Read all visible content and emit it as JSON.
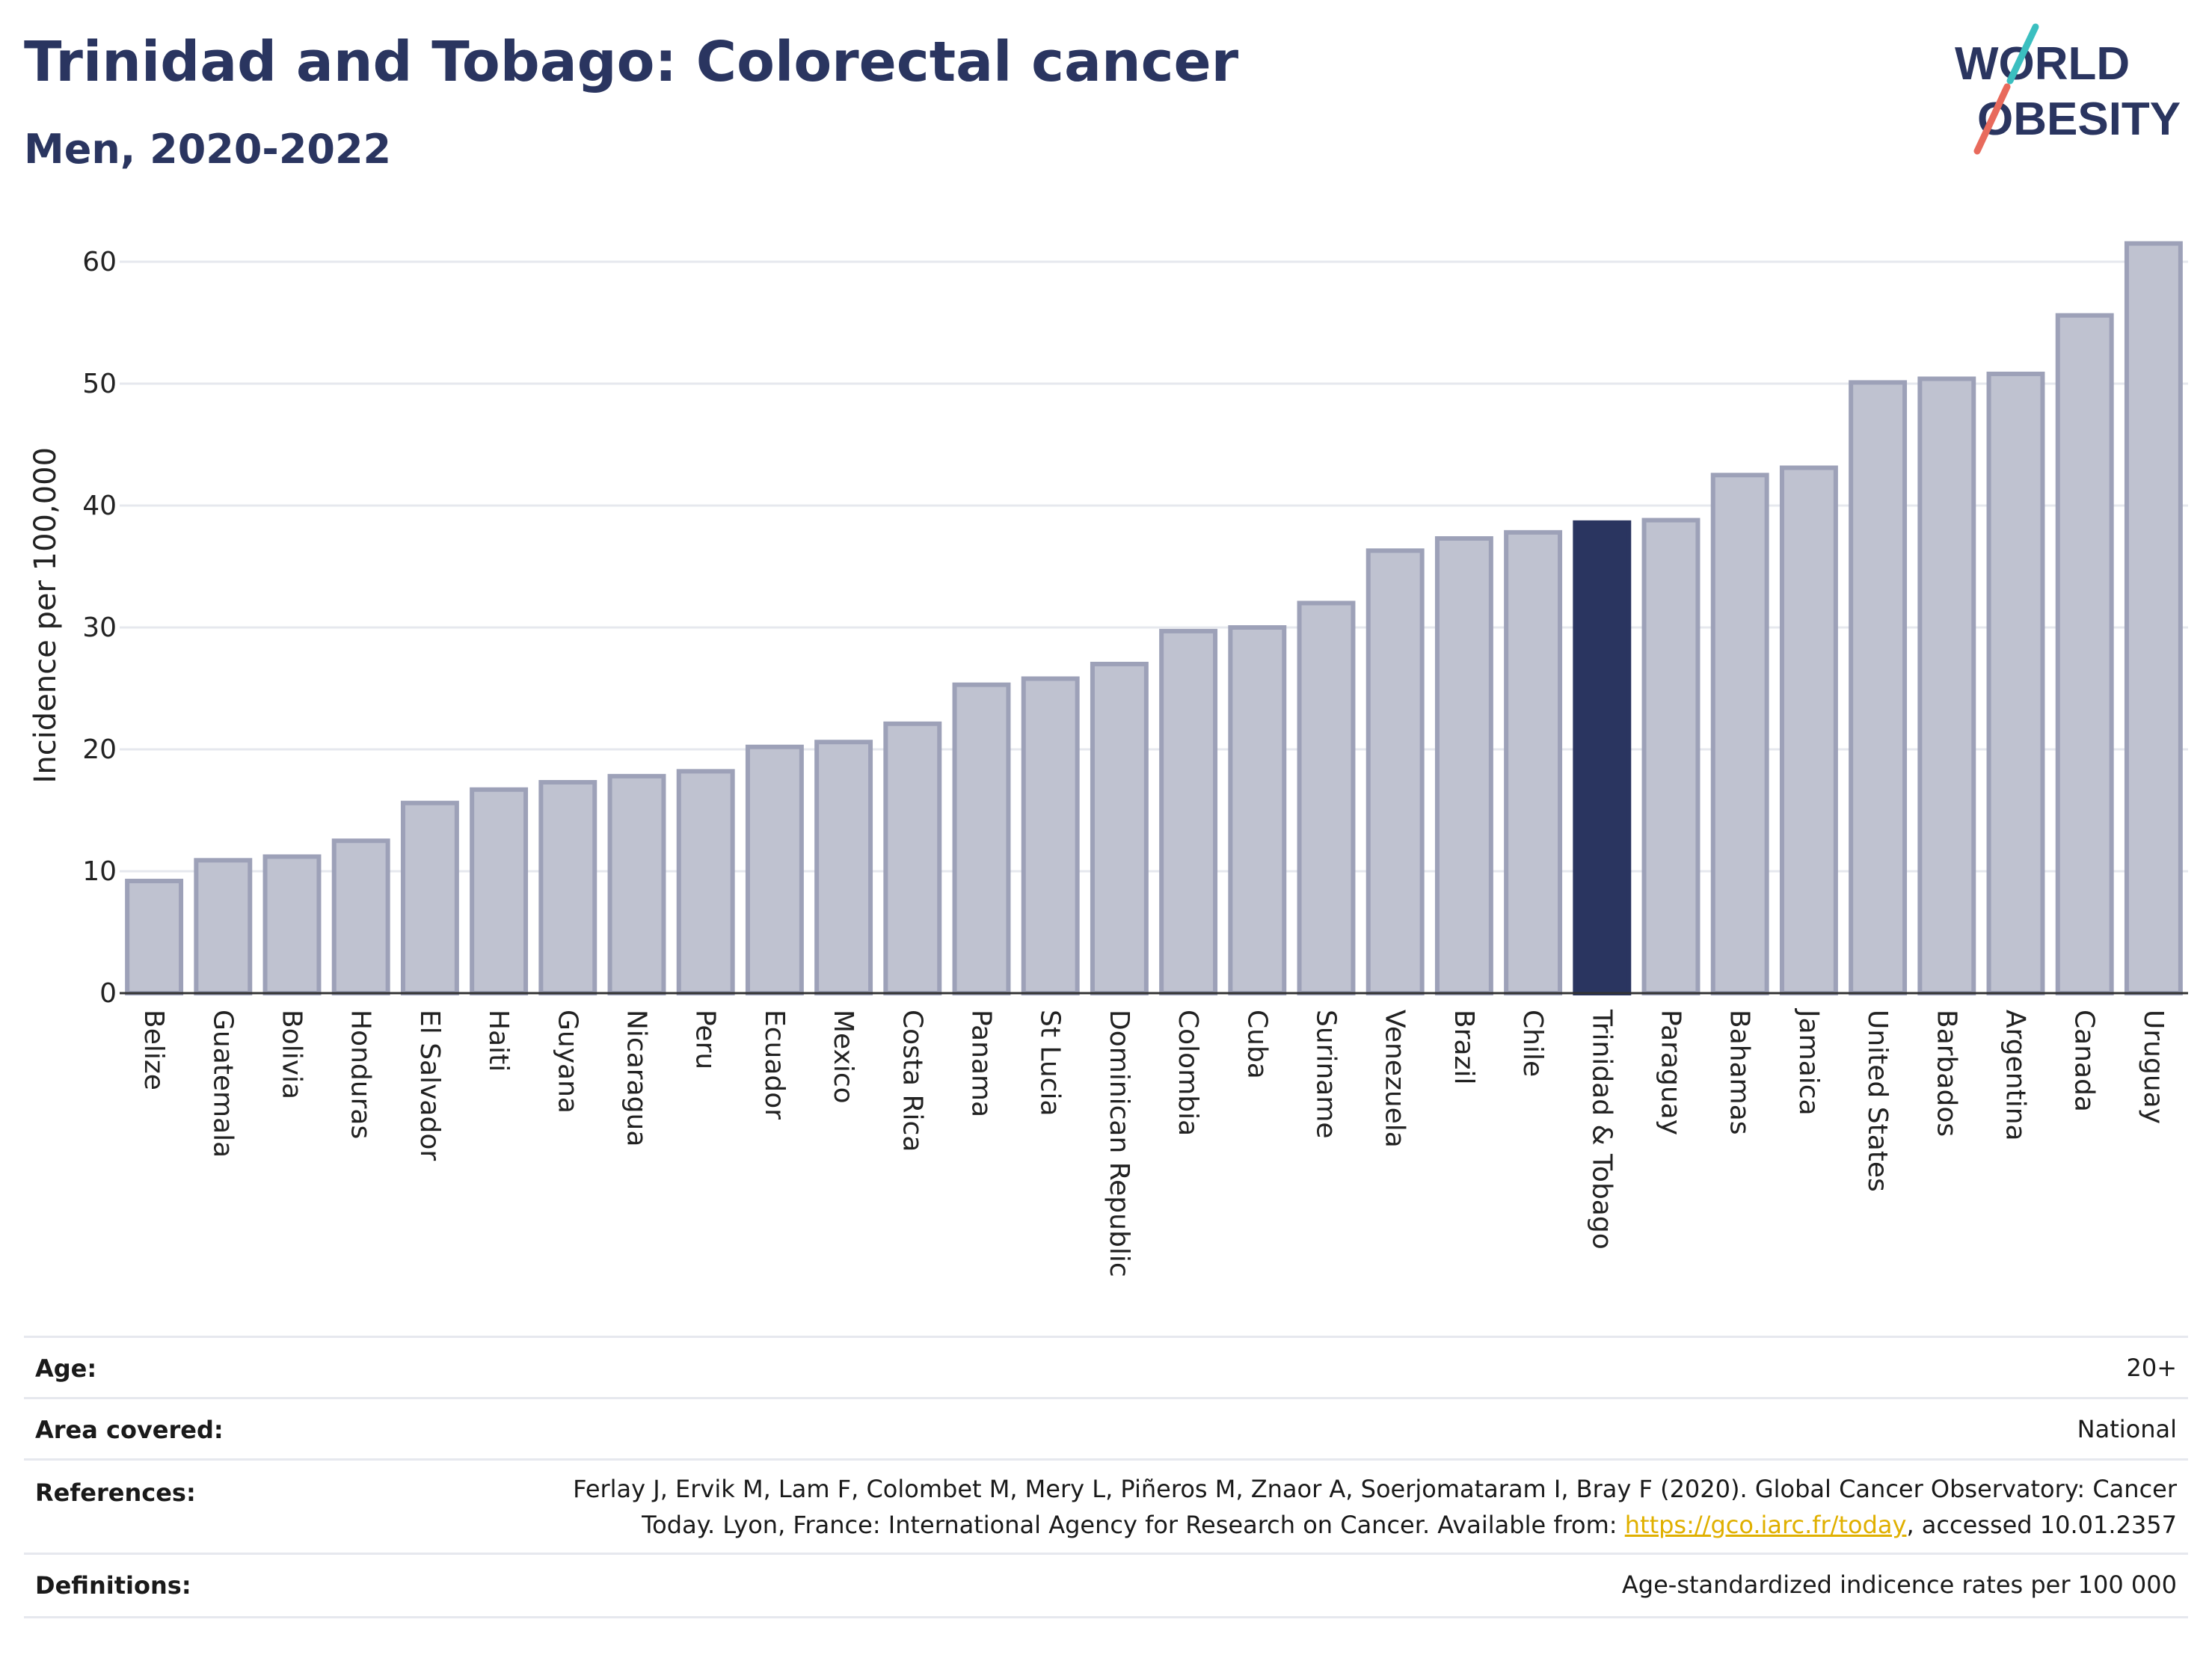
{
  "header": {
    "title": "Trinidad and Tobago: Colorectal cancer",
    "subtitle": "Men, 2020-2022"
  },
  "logo": {
    "line1": "WORLD",
    "line2": "OBESITY",
    "colors": {
      "text": "#2a3560",
      "slash_top": "#3bbfc0",
      "slash_bottom": "#e86a5c"
    }
  },
  "chart_data": {
    "type": "bar",
    "ylabel": "Incidence per 100,000",
    "xlabel": "",
    "ylim": [
      0,
      62
    ],
    "yticks": [
      0,
      10,
      20,
      30,
      40,
      50,
      60
    ],
    "grid": true,
    "highlight": "Trinidad & Tobago",
    "colors": {
      "bar": "#bfc2d0",
      "bar_border": "#9da1b8",
      "highlight": "#2a3560",
      "axis": "#333333",
      "grid": "#e6e8ee"
    },
    "categories": [
      "Belize",
      "Guatemala",
      "Bolivia",
      "Honduras",
      "El Salvador",
      "Haiti",
      "Guyana",
      "Nicaragua",
      "Peru",
      "Ecuador",
      "Mexico",
      "Costa Rica",
      "Panama",
      "St Lucia",
      "Dominican Republic",
      "Colombia",
      "Cuba",
      "Suriname",
      "Venezuela",
      "Brazil",
      "Chile",
      "Trinidad & Tobago",
      "Paraguay",
      "Bahamas",
      "Jamaica",
      "United States",
      "Barbados",
      "Argentina",
      "Canada",
      "Uruguay"
    ],
    "values": [
      9.2,
      10.9,
      11.2,
      12.5,
      15.6,
      16.7,
      17.3,
      17.8,
      18.2,
      20.2,
      20.6,
      22.1,
      25.3,
      25.8,
      27.0,
      29.7,
      30.0,
      32.0,
      36.3,
      37.3,
      37.8,
      38.6,
      38.8,
      42.5,
      43.1,
      50.1,
      50.4,
      50.8,
      55.6,
      61.5
    ]
  },
  "meta": {
    "age_label": "Age:",
    "age_value": "20+",
    "area_label": "Area covered:",
    "area_value": "National",
    "references_label": "References:",
    "references_line1": "Ferlay J, Ervik M, Lam F, Colombet M, Mery L, Piñeros M, Znaor A, Soerjomataram I, Bray F (2020). Global Cancer Observatory: Cancer",
    "references_line2_pre": "Today. Lyon, France: International Agency for Research on Cancer. Available from: ",
    "references_link": "https://gco.iarc.fr/today",
    "references_line2_post": ", accessed 10.01.2357",
    "definitions_label": "Definitions:",
    "definitions_value": "Age-standardized indicence rates per 100 000"
  }
}
